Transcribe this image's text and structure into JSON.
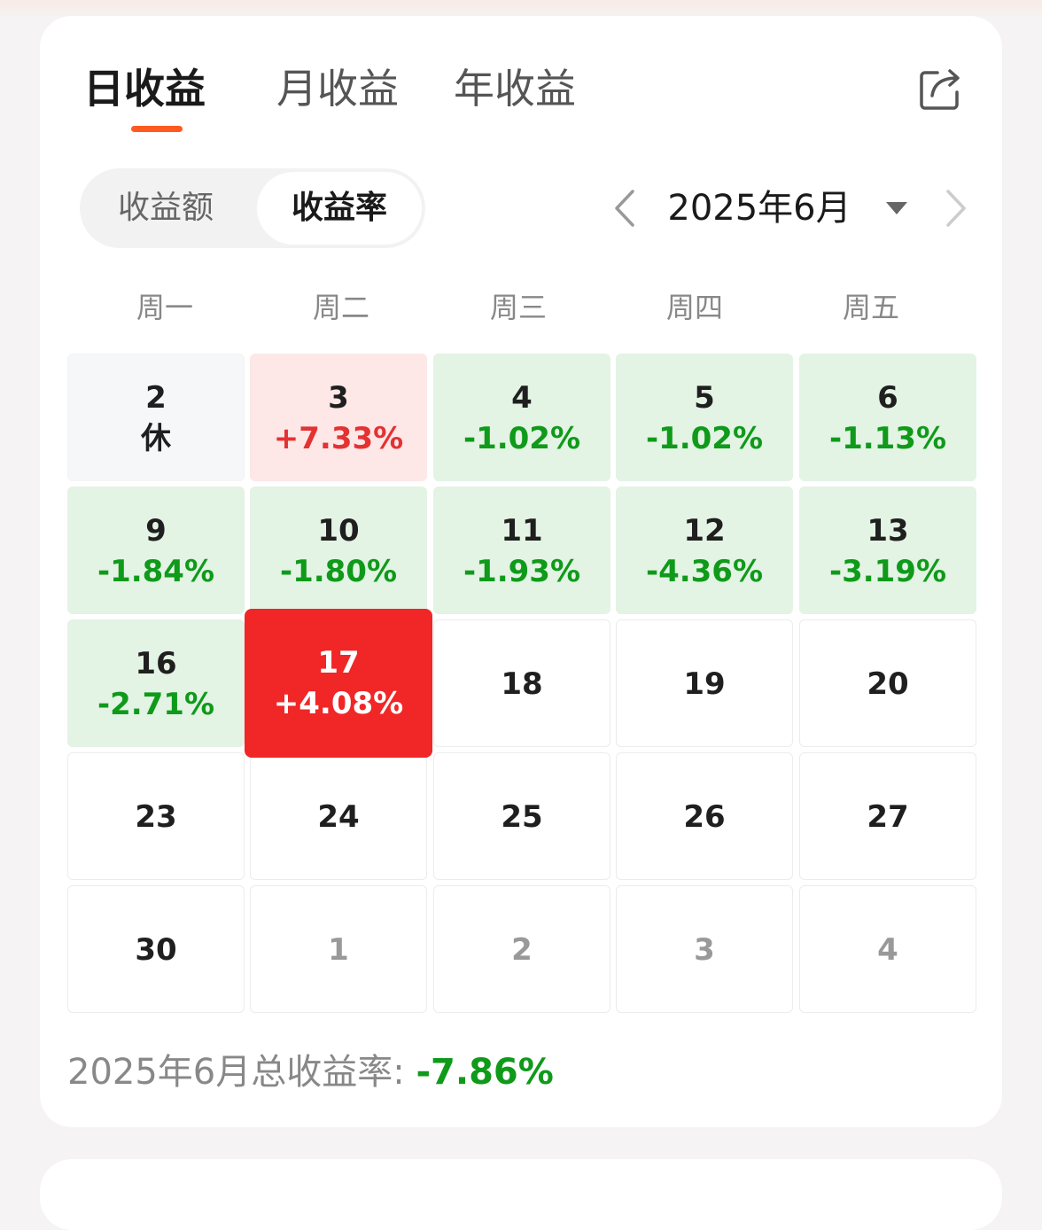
{
  "tabs": [
    {
      "label": "日收益",
      "active": true
    },
    {
      "label": "月收益",
      "active": false
    },
    {
      "label": "年收益",
      "active": false
    }
  ],
  "segment": {
    "options": [
      "收益额",
      "收益率"
    ],
    "selected": "收益率"
  },
  "month": {
    "label": "2025年6月"
  },
  "weekdays": [
    "周一",
    "周二",
    "周三",
    "周四",
    "周五"
  ],
  "calendar": [
    {
      "day": "2",
      "value": "休",
      "status": "holiday"
    },
    {
      "day": "3",
      "value": "+7.33%",
      "status": "up"
    },
    {
      "day": "4",
      "value": "-1.02%",
      "status": "down"
    },
    {
      "day": "5",
      "value": "-1.02%",
      "status": "down"
    },
    {
      "day": "6",
      "value": "-1.13%",
      "status": "down"
    },
    {
      "day": "9",
      "value": "-1.84%",
      "status": "down"
    },
    {
      "day": "10",
      "value": "-1.80%",
      "status": "down"
    },
    {
      "day": "11",
      "value": "-1.93%",
      "status": "down"
    },
    {
      "day": "12",
      "value": "-4.36%",
      "status": "down"
    },
    {
      "day": "13",
      "value": "-3.19%",
      "status": "down"
    },
    {
      "day": "16",
      "value": "-2.71%",
      "status": "down"
    },
    {
      "day": "17",
      "value": "+4.08%",
      "status": "up-selected"
    },
    {
      "day": "18",
      "value": "",
      "status": "empty"
    },
    {
      "day": "19",
      "value": "",
      "status": "empty"
    },
    {
      "day": "20",
      "value": "",
      "status": "empty"
    },
    {
      "day": "23",
      "value": "",
      "status": "empty"
    },
    {
      "day": "24",
      "value": "",
      "status": "empty"
    },
    {
      "day": "25",
      "value": "",
      "status": "empty"
    },
    {
      "day": "26",
      "value": "",
      "status": "empty"
    },
    {
      "day": "27",
      "value": "",
      "status": "empty"
    },
    {
      "day": "30",
      "value": "",
      "status": "empty"
    },
    {
      "day": "1",
      "value": "",
      "status": "next-month"
    },
    {
      "day": "2",
      "value": "",
      "status": "next-month"
    },
    {
      "day": "3",
      "value": "",
      "status": "next-month"
    },
    {
      "day": "4",
      "value": "",
      "status": "next-month"
    }
  ],
  "total": {
    "label": "2025年6月总收益率: ",
    "value": "-7.86%"
  },
  "colors": {
    "accent": "#ff5a1f",
    "loss_green": "#0f9a1a",
    "gain_red": "#e43232",
    "selected_red": "#f12626",
    "loss_bg": "#e3f3e4",
    "gain_bg": "#fde7e7"
  },
  "icons": {
    "share": "share-icon",
    "prev": "chevron-left-icon",
    "next": "chevron-right-icon",
    "dropdown": "caret-down-icon"
  }
}
